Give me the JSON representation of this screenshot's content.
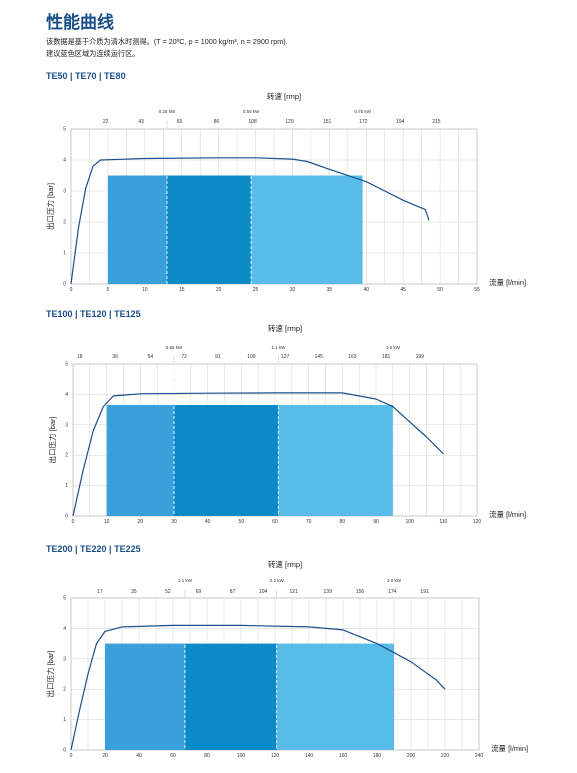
{
  "page": {
    "title": "性能曲线",
    "desc_line1": "该数据是基于介质为清水时测得。(T = 20ºC, ρ = 1000 kg/m³, n = 2900 rpm).",
    "desc_line2": "建议蓝色区域为连续运行区。"
  },
  "colors": {
    "curve": "#1b4f8a",
    "zone_left": "#3aa0dc",
    "zone_mid": "#0a8bc7",
    "zone_right": "#58bbe8",
    "grid": "#c8c8c8",
    "frame": "#999999"
  },
  "chart_data": [
    {
      "type": "line",
      "section_title": "TE50 | TE70 | TE80",
      "xlabel": "流量 [l/min]",
      "ylabel": "出口压力 [bar]",
      "top_label": "转速 [rmp]",
      "xlim": [
        0,
        55
      ],
      "ylim": [
        0,
        5
      ],
      "x_ticks": [
        "0",
        "5",
        "10",
        "15",
        "20",
        "25",
        "30",
        "35",
        "40",
        "45",
        "50",
        "55"
      ],
      "y_ticks": [
        "0",
        "1",
        "2",
        "3",
        "4",
        "5"
      ],
      "top_ticks": [
        {
          "x": 4.7,
          "label": "22"
        },
        {
          "x": 9.5,
          "label": "43"
        },
        {
          "x": 14.7,
          "label": "65"
        },
        {
          "x": 19.7,
          "label": "86"
        },
        {
          "x": 24.6,
          "label": "108"
        },
        {
          "x": 29.6,
          "label": "129"
        },
        {
          "x": 34.7,
          "label": "151"
        },
        {
          "x": 39.6,
          "label": "172"
        },
        {
          "x": 44.6,
          "label": "194"
        },
        {
          "x": 49.5,
          "label": "215"
        }
      ],
      "power_labels": [
        {
          "x": 13,
          "label": "0.25 kW"
        },
        {
          "x": 24.4,
          "label": "0.55 kW"
        },
        {
          "x": 39.5,
          "label": "0.75 kW"
        }
      ],
      "zones": [
        {
          "x0": 5,
          "x1": 13,
          "y": 3.5,
          "color": "zone_left"
        },
        {
          "x0": 13,
          "x1": 24.4,
          "y": 3.5,
          "color": "zone_mid"
        },
        {
          "x0": 24.4,
          "x1": 39.5,
          "y": 3.5,
          "color": "zone_right"
        }
      ],
      "dividers": [
        13,
        24.4
      ],
      "curve": [
        [
          0,
          0
        ],
        [
          1,
          1.8
        ],
        [
          2,
          3.1
        ],
        [
          3,
          3.8
        ],
        [
          4,
          4.0
        ],
        [
          10,
          4.05
        ],
        [
          20,
          4.07
        ],
        [
          25,
          4.07
        ],
        [
          30,
          4.03
        ],
        [
          32,
          3.95
        ],
        [
          35,
          3.7
        ],
        [
          40,
          3.3
        ],
        [
          45,
          2.7
        ],
        [
          48,
          2.4
        ],
        [
          48.5,
          2.05
        ]
      ]
    },
    {
      "type": "line",
      "section_title": "TE100 | TE120 | TE125",
      "xlabel": "流量 [l/min]",
      "ylabel": "出口压力 [bar]",
      "top_label": "转速 [rmp]",
      "xlim": [
        0,
        120
      ],
      "ylim": [
        0,
        5
      ],
      "x_ticks": [
        "0",
        "10",
        "20",
        "30",
        "40",
        "50",
        "60",
        "70",
        "80",
        "90",
        "100",
        "110",
        "120"
      ],
      "y_ticks": [
        "0",
        "1",
        "2",
        "3",
        "4",
        "5"
      ],
      "top_ticks": [
        {
          "x": 2,
          "label": "18"
        },
        {
          "x": 12.5,
          "label": "36"
        },
        {
          "x": 23,
          "label": "54"
        },
        {
          "x": 33,
          "label": "72"
        },
        {
          "x": 43,
          "label": "91"
        },
        {
          "x": 53,
          "label": "109"
        },
        {
          "x": 63,
          "label": "127"
        },
        {
          "x": 73,
          "label": "145"
        },
        {
          "x": 83,
          "label": "163"
        },
        {
          "x": 93,
          "label": "181"
        },
        {
          "x": 103,
          "label": "199"
        }
      ],
      "power_labels": [
        {
          "x": 30,
          "label": "0.55 kW"
        },
        {
          "x": 61,
          "label": "1.1 kW"
        },
        {
          "x": 95,
          "label": "1.5 kW"
        }
      ],
      "zones": [
        {
          "x0": 10,
          "x1": 30,
          "y": 3.65,
          "color": "zone_left"
        },
        {
          "x0": 30,
          "x1": 61,
          "y": 3.65,
          "color": "zone_mid"
        },
        {
          "x0": 61,
          "x1": 95,
          "y": 3.65,
          "color": "zone_right"
        }
      ],
      "dividers": [
        30,
        61
      ],
      "curve": [
        [
          0,
          0
        ],
        [
          3,
          1.5
        ],
        [
          6,
          2.8
        ],
        [
          9,
          3.6
        ],
        [
          12,
          3.95
        ],
        [
          20,
          4.02
        ],
        [
          40,
          4.04
        ],
        [
          60,
          4.05
        ],
        [
          80,
          4.05
        ],
        [
          90,
          3.85
        ],
        [
          95,
          3.6
        ],
        [
          100,
          3.1
        ],
        [
          105,
          2.6
        ],
        [
          110,
          2.05
        ]
      ]
    },
    {
      "type": "line",
      "section_title": "TE200 | TE220 | TE225",
      "xlabel": "流量 [l/min]",
      "ylabel": "出口压力 [bar]",
      "top_label": "转速 [rmp]",
      "xlim": [
        0,
        240
      ],
      "ylim": [
        0,
        5
      ],
      "x_ticks": [
        "0",
        "20",
        "40",
        "60",
        "80",
        "100",
        "120",
        "140",
        "160",
        "180",
        "200",
        "220",
        "240"
      ],
      "y_ticks": [
        "0",
        "1",
        "2",
        "3",
        "4",
        "5"
      ],
      "top_ticks": [
        {
          "x": 17,
          "label": "17"
        },
        {
          "x": 37,
          "label": "35"
        },
        {
          "x": 57,
          "label": "52"
        },
        {
          "x": 75,
          "label": "69"
        },
        {
          "x": 95,
          "label": "87"
        },
        {
          "x": 113,
          "label": "104"
        },
        {
          "x": 131,
          "label": "121"
        },
        {
          "x": 151,
          "label": "139"
        },
        {
          "x": 170,
          "label": "156"
        },
        {
          "x": 189,
          "label": "174"
        },
        {
          "x": 208,
          "label": "191"
        }
      ],
      "power_labels": [
        {
          "x": 67,
          "label": "1.1 kW"
        },
        {
          "x": 121,
          "label": "2.2 kW"
        },
        {
          "x": 190,
          "label": "3.0 kW"
        }
      ],
      "zones": [
        {
          "x0": 20,
          "x1": 67,
          "y": 3.5,
          "color": "zone_left"
        },
        {
          "x0": 67,
          "x1": 121,
          "y": 3.5,
          "color": "zone_mid"
        },
        {
          "x0": 121,
          "x1": 190,
          "y": 3.5,
          "color": "zone_right"
        }
      ],
      "dividers": [
        67,
        121
      ],
      "curve": [
        [
          0,
          0
        ],
        [
          5,
          1.3
        ],
        [
          10,
          2.5
        ],
        [
          15,
          3.5
        ],
        [
          20,
          3.9
        ],
        [
          30,
          4.05
        ],
        [
          60,
          4.1
        ],
        [
          100,
          4.1
        ],
        [
          140,
          4.05
        ],
        [
          160,
          3.95
        ],
        [
          180,
          3.5
        ],
        [
          200,
          2.9
        ],
        [
          215,
          2.3
        ],
        [
          220,
          2.0
        ]
      ]
    }
  ]
}
